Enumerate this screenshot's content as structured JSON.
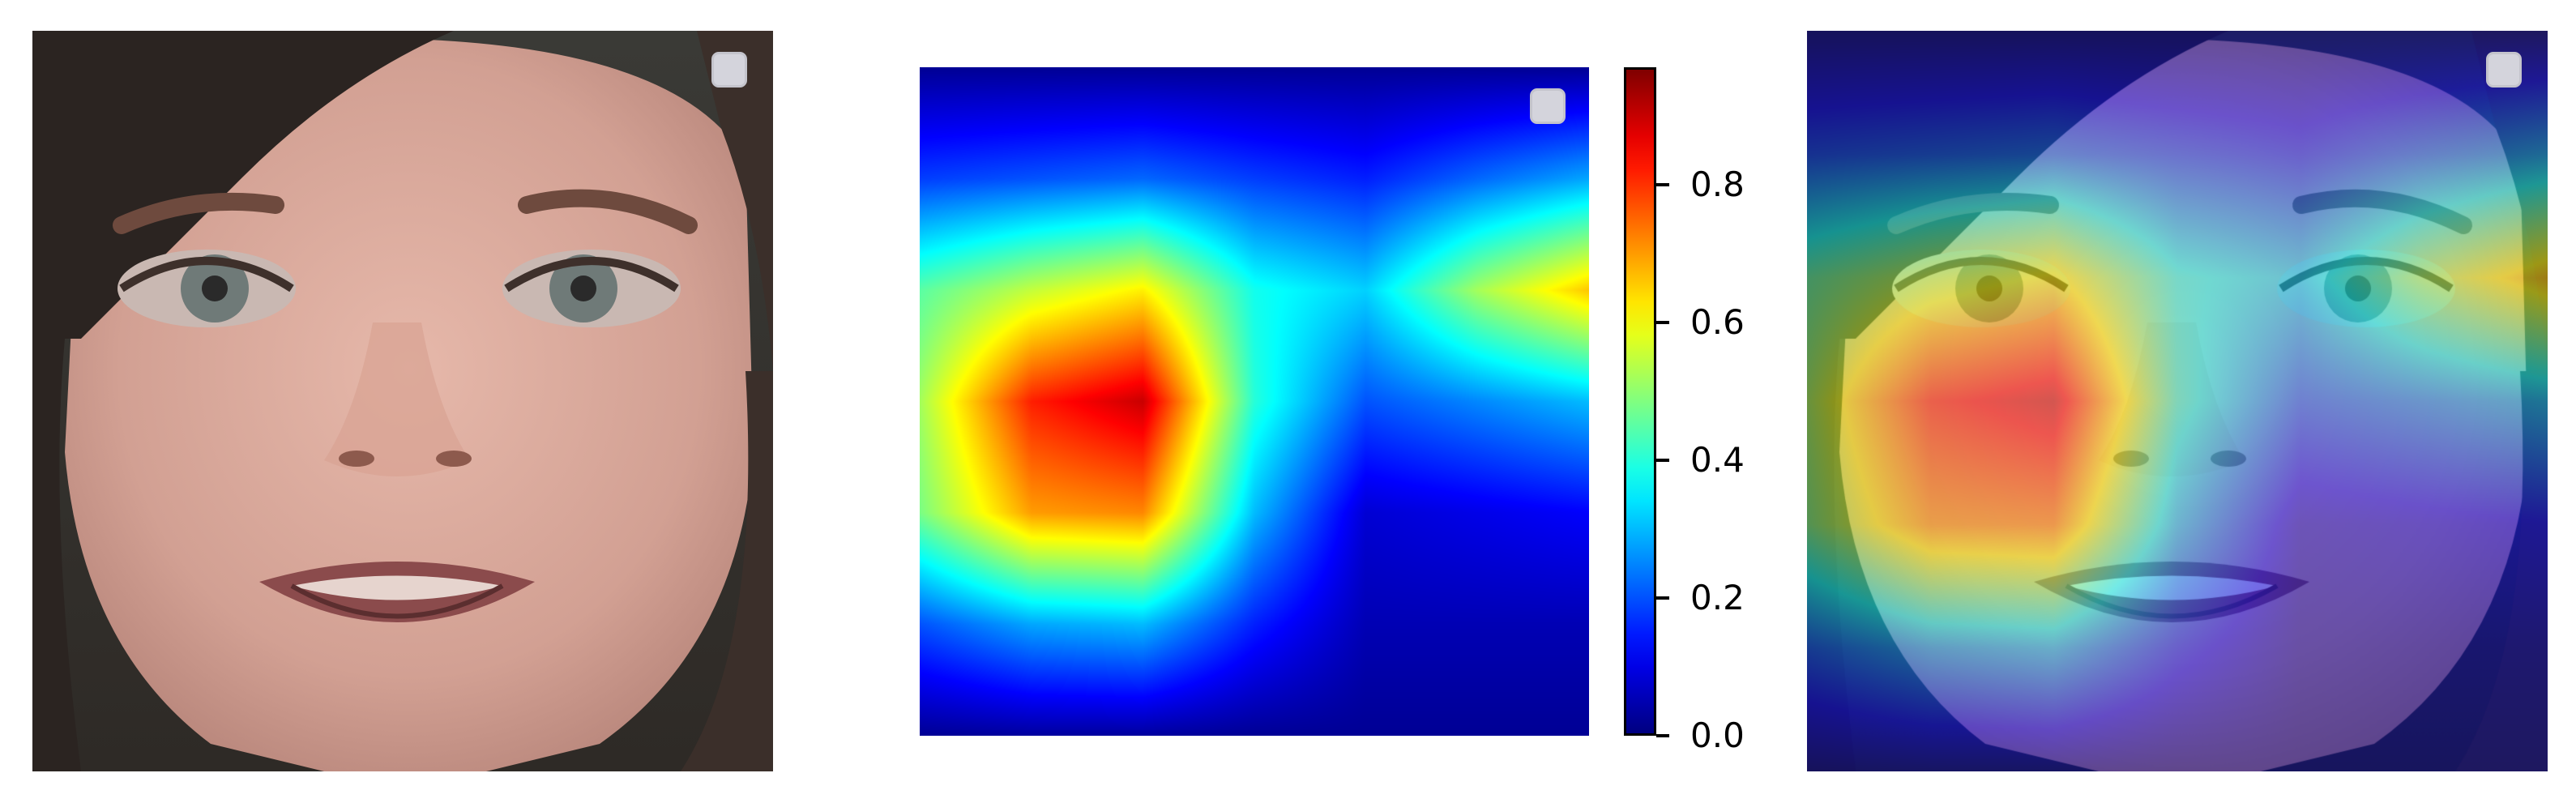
{
  "figure": {
    "panels": [
      {
        "name": "face-photo",
        "legend": ""
      },
      {
        "name": "attention-heatmap",
        "legend": ""
      },
      {
        "name": "heatmap-overlay",
        "legend": ""
      }
    ]
  },
  "chart_data": {
    "type": "heatmap",
    "title": "",
    "xlabel": "",
    "ylabel": "",
    "colormap": "jet",
    "colorbar": {
      "range": [
        0.0,
        0.97
      ],
      "ticks": [
        "0.0",
        "0.2",
        "0.4",
        "0.6",
        "0.8"
      ],
      "tick_values": [
        0.0,
        0.2,
        0.4,
        0.6,
        0.8
      ]
    },
    "grid": false,
    "axes_visible": false,
    "rows": 7,
    "cols": 7,
    "values": [
      [
        0.02,
        0.02,
        0.02,
        0.02,
        0.02,
        0.02,
        0.02
      ],
      [
        0.18,
        0.2,
        0.22,
        0.18,
        0.15,
        0.22,
        0.28
      ],
      [
        0.45,
        0.55,
        0.62,
        0.38,
        0.32,
        0.52,
        0.66
      ],
      [
        0.52,
        0.82,
        0.9,
        0.4,
        0.2,
        0.25,
        0.3
      ],
      [
        0.48,
        0.7,
        0.72,
        0.3,
        0.08,
        0.1,
        0.12
      ],
      [
        0.2,
        0.28,
        0.3,
        0.15,
        0.05,
        0.05,
        0.05
      ],
      [
        0.02,
        0.03,
        0.03,
        0.02,
        0.02,
        0.02,
        0.02
      ]
    ]
  },
  "colors": {
    "skin": "#d9a79a",
    "hair": "#2b2421",
    "overlay_tint": "#4a5cff"
  }
}
